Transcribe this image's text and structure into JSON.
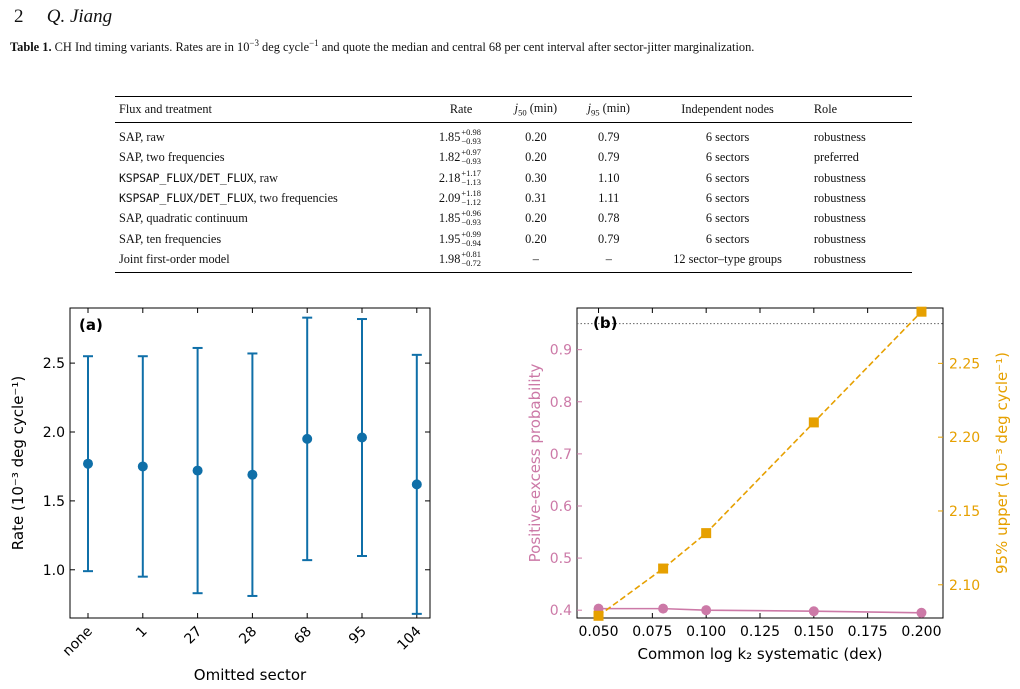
{
  "header": {
    "page_number": "2",
    "author": "Q. Jiang"
  },
  "caption": {
    "label": "Table 1.",
    "text_before": " CH Ind timing variants. Rates are in 10",
    "exp1": "−3",
    "text_mid": " deg cycle",
    "exp2": "−1",
    "text_after": " and quote the median and central 68 per cent interval after sector-jitter marginalization."
  },
  "table": {
    "headers": {
      "flux": "Flux and treatment",
      "rate": "Rate",
      "j50": "j",
      "j50_sub": "50",
      "j50_unit": " (min)",
      "j95": "j",
      "j95_sub": "95",
      "j95_unit": " (min)",
      "nodes": "Independent nodes",
      "role": "Role"
    },
    "rows": [
      {
        "flux": "SAP, raw",
        "rate": "1.85",
        "plus": "+0.98",
        "minus": "−0.93",
        "j50": "0.20",
        "j95": "0.79",
        "nodes": "6 sectors",
        "role": "robustness"
      },
      {
        "flux": "SAP, two frequencies",
        "rate": "1.82",
        "plus": "+0.97",
        "minus": "−0.93",
        "j50": "0.20",
        "j95": "0.79",
        "nodes": "6 sectors",
        "role": "preferred"
      },
      {
        "flux_mono": "KSPSAP_FLUX/DET_FLUX",
        "flux_rest": ", raw",
        "rate": "2.18",
        "plus": "+1.17",
        "minus": "−1.13",
        "j50": "0.30",
        "j95": "1.10",
        "nodes": "6 sectors",
        "role": "robustness"
      },
      {
        "flux_mono": "KSPSAP_FLUX/DET_FLUX",
        "flux_rest": ", two frequencies",
        "rate": "2.09",
        "plus": "+1.18",
        "minus": "−1.12",
        "j50": "0.31",
        "j95": "1.11",
        "nodes": "6 sectors",
        "role": "robustness"
      },
      {
        "flux": "SAP, quadratic continuum",
        "rate": "1.85",
        "plus": "+0.96",
        "minus": "−0.93",
        "j50": "0.20",
        "j95": "0.78",
        "nodes": "6 sectors",
        "role": "robustness"
      },
      {
        "flux": "SAP, ten frequencies",
        "rate": "1.95",
        "plus": "+0.99",
        "minus": "−0.94",
        "j50": "0.20",
        "j95": "0.79",
        "nodes": "6 sectors",
        "role": "robustness"
      },
      {
        "flux": "Joint first-order model",
        "rate": "1.98",
        "plus": "+0.81",
        "minus": "−0.72",
        "j50": "–",
        "j95": "–",
        "nodes": "12 sector–type groups",
        "role": "robustness"
      }
    ]
  },
  "chart_data": [
    {
      "type": "scatter",
      "panel_label": "(a)",
      "xlabel": "Omitted sector",
      "ylabel": "Rate (10⁻³ deg cycle⁻¹)",
      "categories": [
        "none",
        "1",
        "27",
        "28",
        "68",
        "95",
        "104"
      ],
      "values": [
        1.77,
        1.75,
        1.72,
        1.69,
        1.95,
        1.96,
        1.62
      ],
      "err_low": [
        0.99,
        0.95,
        0.83,
        0.81,
        1.07,
        1.1,
        0.68
      ],
      "err_high": [
        2.55,
        2.55,
        2.61,
        2.57,
        2.83,
        2.82,
        2.56
      ],
      "ylim": [
        0.65,
        2.9
      ],
      "yticks": [
        "1.0",
        "1.5",
        "2.0",
        "2.5"
      ],
      "color": "#0f6fa8"
    },
    {
      "type": "line",
      "panel_label": "(b)",
      "xlabel": "Common log k₂ systematic (dex)",
      "xlim": [
        0.04,
        0.21
      ],
      "xticks": [
        "0.050",
        "0.075",
        "0.100",
        "0.125",
        "0.150",
        "0.175",
        "0.200"
      ],
      "left_axis": {
        "ylabel": "Positive-excess probability",
        "ylim": [
          0.385,
          0.98
        ],
        "yticks": [
          "0.4",
          "0.5",
          "0.6",
          "0.7",
          "0.8",
          "0.9"
        ],
        "color": "#cc79a7"
      },
      "right_axis": {
        "ylabel": "95% upper (10⁻³ deg cycle⁻¹)",
        "ylim": [
          2.0775,
          2.2875
        ],
        "yticks": [
          "2.10",
          "2.15",
          "2.20",
          "2.25"
        ],
        "color": "#e6a000"
      },
      "series": [
        {
          "axis": "left",
          "x": [
            0.05,
            0.08,
            0.1,
            0.15,
            0.2
          ],
          "values": [
            0.403,
            0.403,
            0.4,
            0.398,
            0.395
          ]
        },
        {
          "axis": "right",
          "x": [
            0.05,
            0.08,
            0.1,
            0.15,
            0.2
          ],
          "values": [
            2.079,
            2.111,
            2.135,
            2.21,
            2.285
          ]
        }
      ],
      "reference_line_left": 0.95
    }
  ]
}
